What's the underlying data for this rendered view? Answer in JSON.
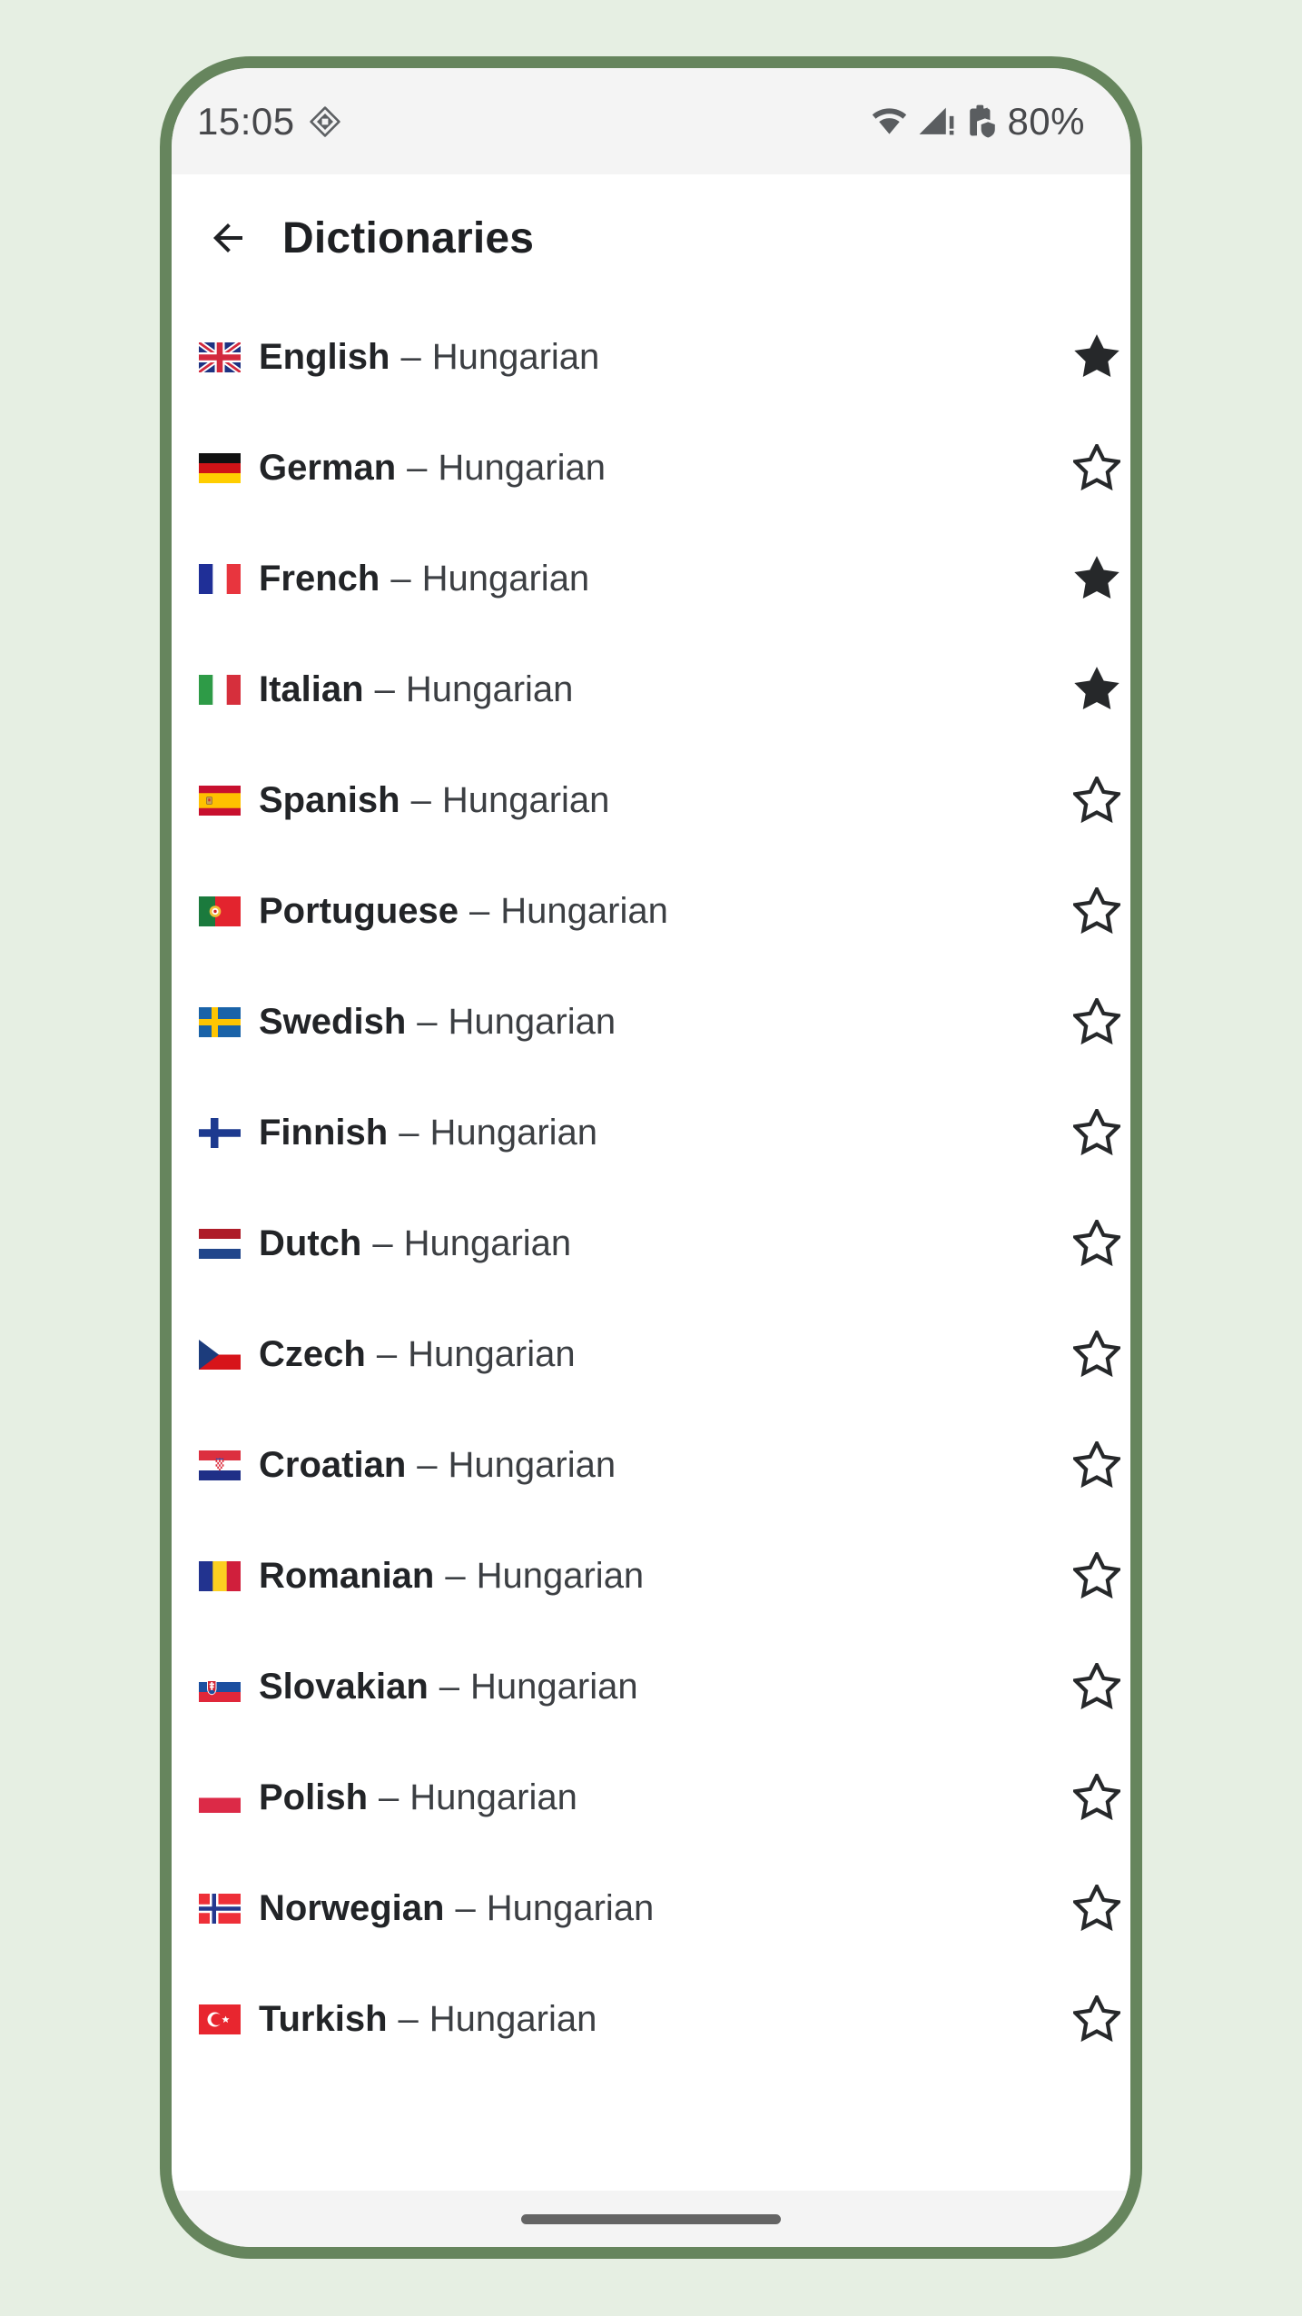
{
  "status_bar": {
    "time": "15:05",
    "battery_percent": "80%",
    "icons": [
      "app-notification-diamond",
      "wifi",
      "cellular-no-internet",
      "battery-protected"
    ]
  },
  "header": {
    "title": "Dictionaries",
    "back_icon": "arrow-left"
  },
  "list": {
    "separator": "–",
    "target_language": "Hungarian",
    "rows": [
      {
        "language": "English",
        "flag": "uk",
        "favorite": true
      },
      {
        "language": "German",
        "flag": "germany",
        "favorite": false
      },
      {
        "language": "French",
        "flag": "france",
        "favorite": true
      },
      {
        "language": "Italian",
        "flag": "italy",
        "favorite": true
      },
      {
        "language": "Spanish",
        "flag": "spain",
        "favorite": false
      },
      {
        "language": "Portuguese",
        "flag": "portugal",
        "favorite": false
      },
      {
        "language": "Swedish",
        "flag": "sweden",
        "favorite": false
      },
      {
        "language": "Finnish",
        "flag": "finland",
        "favorite": false
      },
      {
        "language": "Dutch",
        "flag": "netherlands",
        "favorite": false
      },
      {
        "language": "Czech",
        "flag": "czechia",
        "favorite": false
      },
      {
        "language": "Croatian",
        "flag": "croatia",
        "favorite": false
      },
      {
        "language": "Romanian",
        "flag": "romania",
        "favorite": false
      },
      {
        "language": "Slovakian",
        "flag": "slovakia",
        "favorite": false
      },
      {
        "language": "Polish",
        "flag": "poland",
        "favorite": false
      },
      {
        "language": "Norwegian",
        "flag": "norway",
        "favorite": false
      },
      {
        "language": "Turkish",
        "flag": "turkey",
        "favorite": false
      }
    ]
  },
  "colors": {
    "page_background": "#e6efe3",
    "frame_green": "#66855d",
    "bar_background": "#f4f4f4",
    "content_background": "#ffffff",
    "text_primary": "#222427",
    "text_secondary": "#3c3f43",
    "status_text": "#47484b",
    "star": "#26282a",
    "home_pill": "#646464"
  }
}
